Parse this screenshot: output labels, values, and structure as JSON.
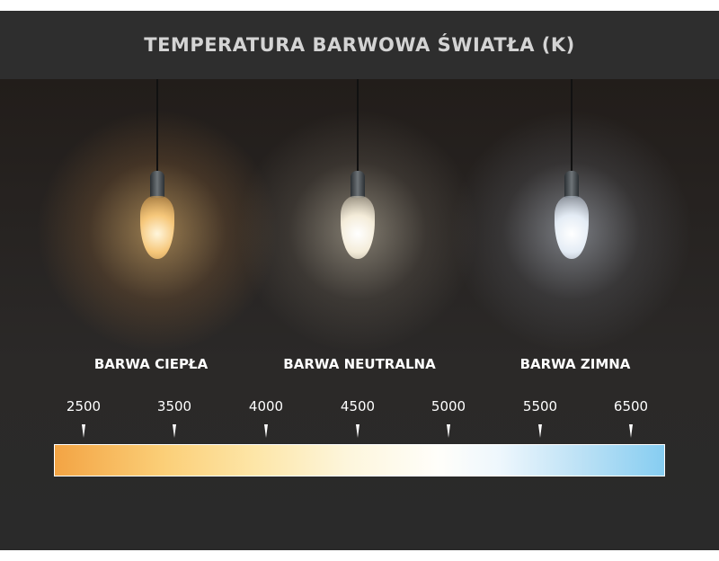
{
  "title": "TEMPERATURA BARWOWA ŚWIATŁA (K)",
  "categories": [
    "BARWA CIEPŁA",
    "BARWA NEUTRALNA",
    "BARWA ZIMNA"
  ],
  "bulbs": [
    {
      "name": "warm",
      "color": "#f6c77a"
    },
    {
      "name": "neutral",
      "color": "#f4ecd9"
    },
    {
      "name": "cold",
      "color": "#e4ecf5"
    }
  ],
  "scale": {
    "ticks": [
      "2500",
      "3500",
      "4000",
      "4500",
      "5000",
      "5500",
      "6500"
    ],
    "gradient_colors": [
      "#f3a444",
      "#fde6a8",
      "#fffefa",
      "#86cdf1"
    ]
  }
}
